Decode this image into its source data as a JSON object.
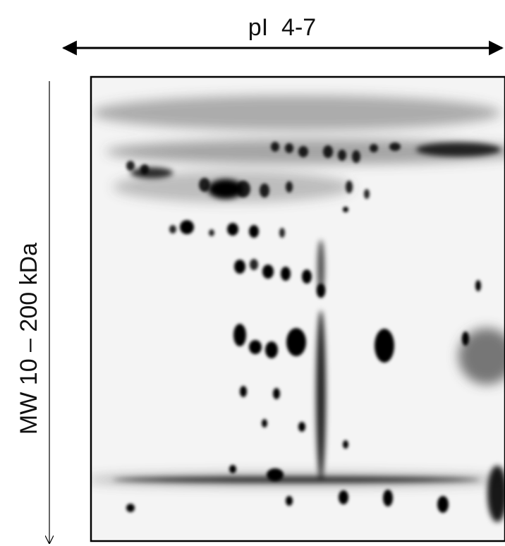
{
  "header": {
    "x_axis_label": "pI  4-7",
    "y_axis_label": "MW 10 – 200 kDa"
  }
}
